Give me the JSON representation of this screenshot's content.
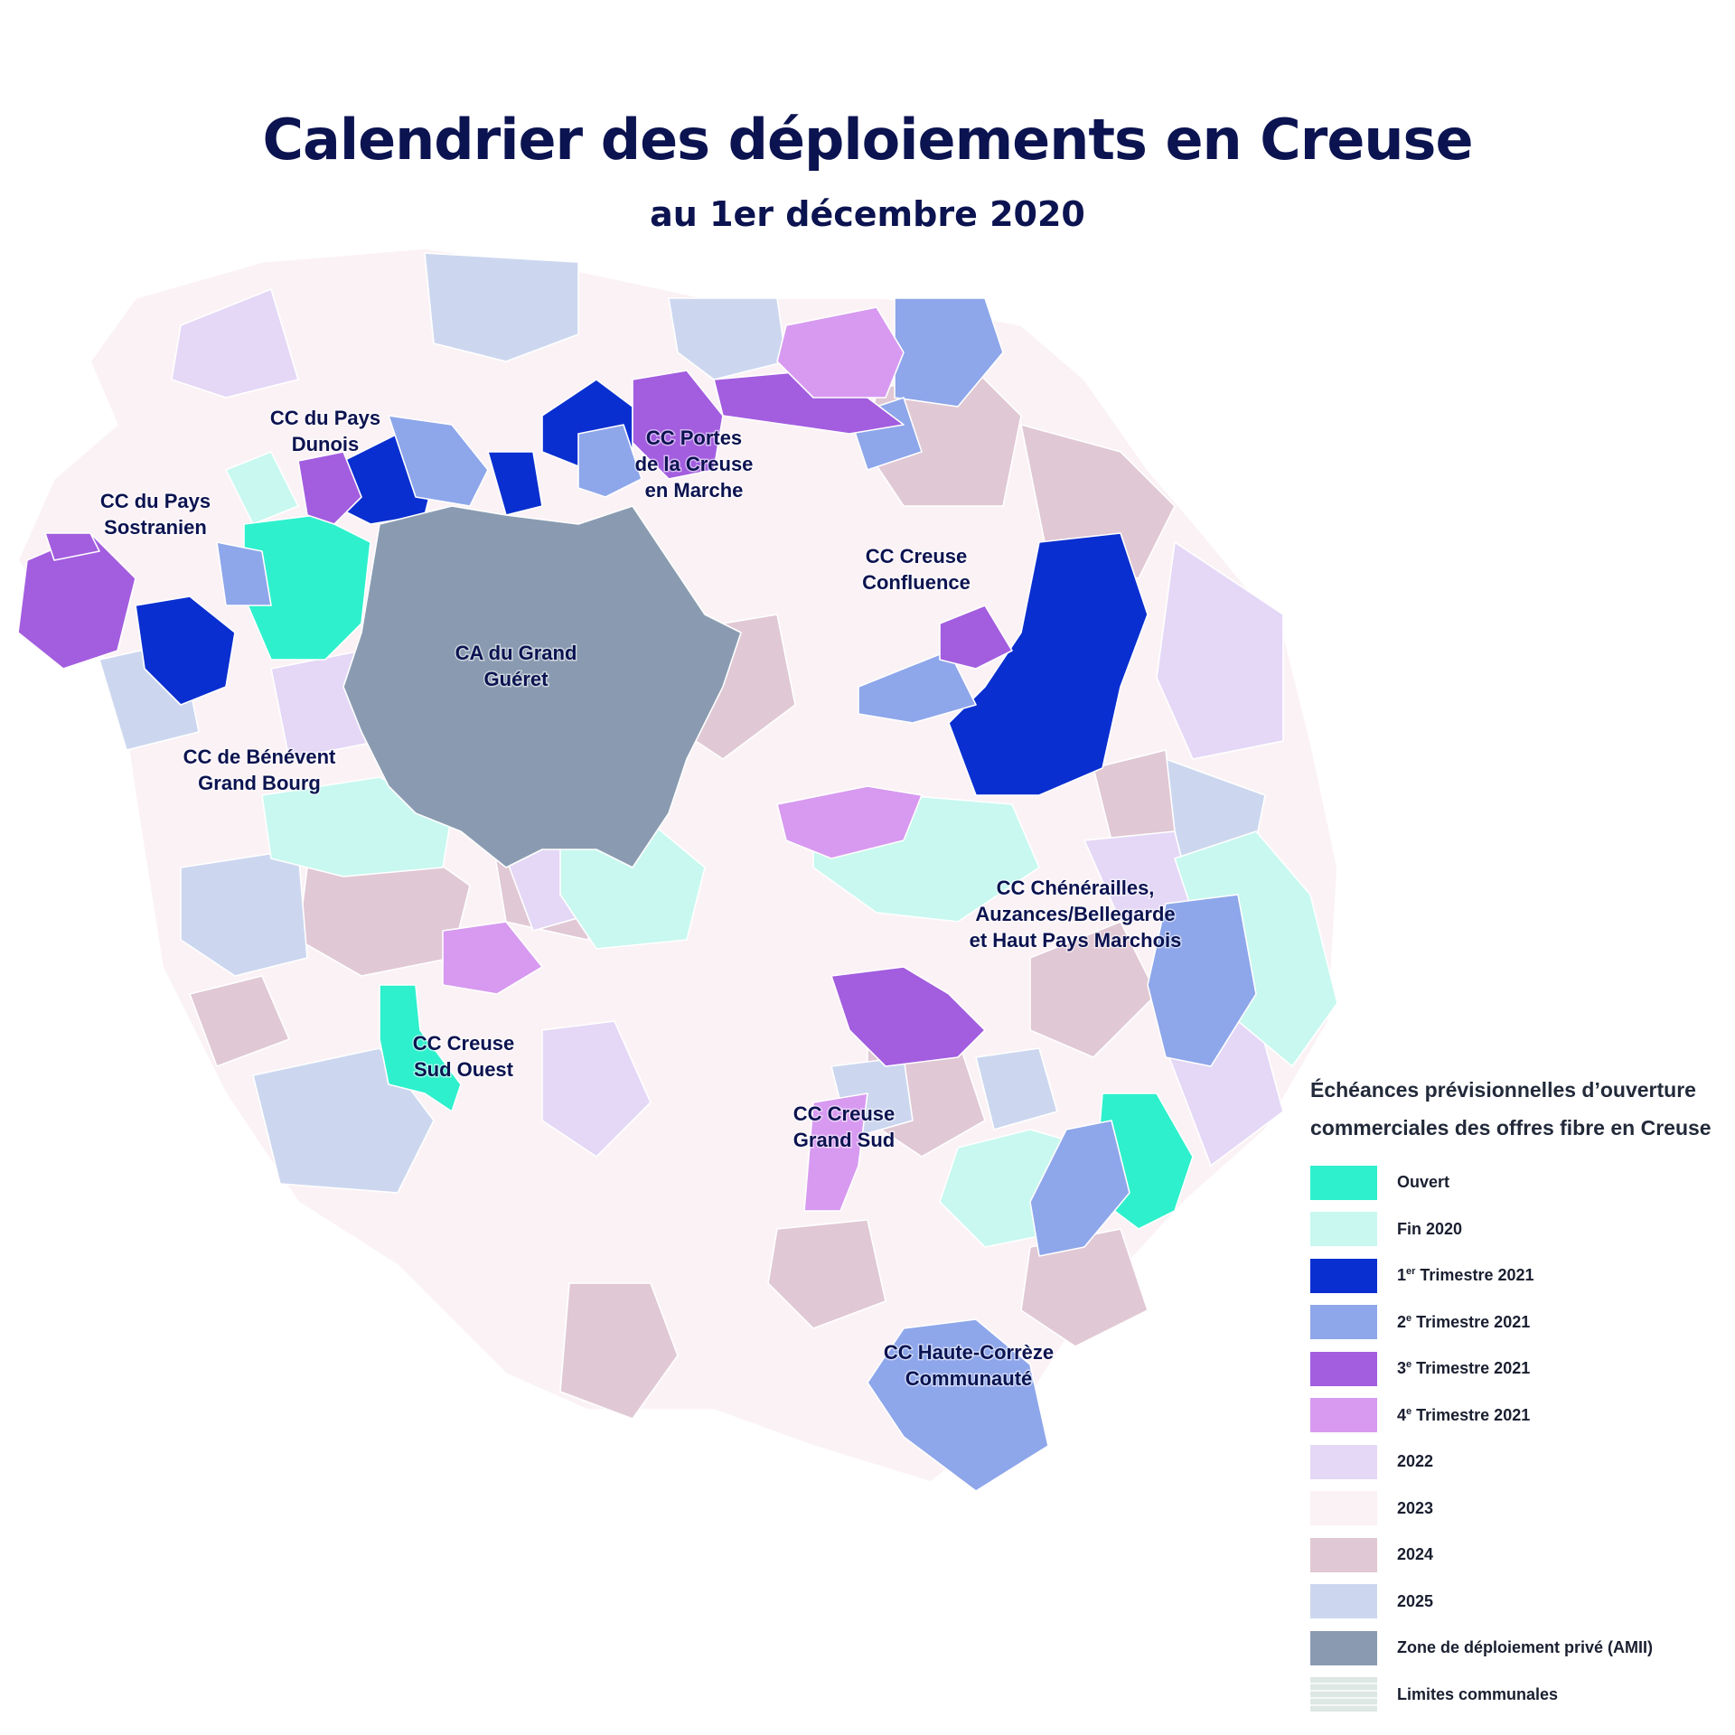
{
  "title": "Calendrier des déploiements en Creuse",
  "subtitle": "au 1er décembre 2020",
  "colors": {
    "ouvert": "#2ef0cc",
    "fin2020": "#c8f8f0",
    "t1_2021": "#0a2fd0",
    "t2_2021": "#8ea6ea",
    "t3_2021": "#a35ddf",
    "t4_2021": "#d79af0",
    "y2022": "#e4d8f6",
    "y2023": "#fbf2f5",
    "y2024": "#e0c8d4",
    "y2025": "#ccd7ef",
    "amii": "#8a9bb1",
    "limites": "#dde7e4"
  },
  "regions": [
    "CC du Pays\nDunois",
    "CC Portes\nde la Creuse\nen Marche",
    "CC du Pays\nSostranien",
    "CC Creuse\nConfluence",
    "CA du Grand\nGuéret",
    "CC de Bénévent\nGrand Bourg",
    "CC Chénérailles,\nAuzances/Bellegarde\net Haut Pays Marchois",
    "CC Creuse\nSud Ouest",
    "CC Creuse\nGrand Sud",
    "CC Haute-Corrèze\nCommunauté"
  ],
  "legend": {
    "title": "Échéances prévisionnelles d’ouverture\ncommerciales des offres fibre en Creuse",
    "items": [
      {
        "label": "Ouvert",
        "color_key": "ouvert"
      },
      {
        "label": "Fin 2020",
        "color_key": "fin2020"
      },
      {
        "label": "1er Trimestre 2021",
        "sup": "er",
        "num": "1",
        "rest": " Trimestre 2021",
        "color_key": "t1_2021"
      },
      {
        "label": "2e Trimestre 2021",
        "sup": "e",
        "num": "2",
        "rest": " Trimestre 2021",
        "color_key": "t2_2021"
      },
      {
        "label": "3e Trimestre 2021",
        "sup": "e",
        "num": "3",
        "rest": " Trimestre 2021",
        "color_key": "t3_2021"
      },
      {
        "label": "4e Trimestre 2021",
        "sup": "e",
        "num": "4",
        "rest": " Trimestre 2021",
        "color_key": "t4_2021"
      },
      {
        "label": "2022",
        "color_key": "y2022"
      },
      {
        "label": "2023",
        "color_key": "y2023"
      },
      {
        "label": "2024",
        "color_key": "y2024"
      },
      {
        "label": "2025",
        "color_key": "y2025"
      },
      {
        "label": "Zone de déploiement privé (AMII)",
        "color_key": "amii"
      },
      {
        "label": "Limites communales",
        "color_key": "limites"
      }
    ]
  }
}
